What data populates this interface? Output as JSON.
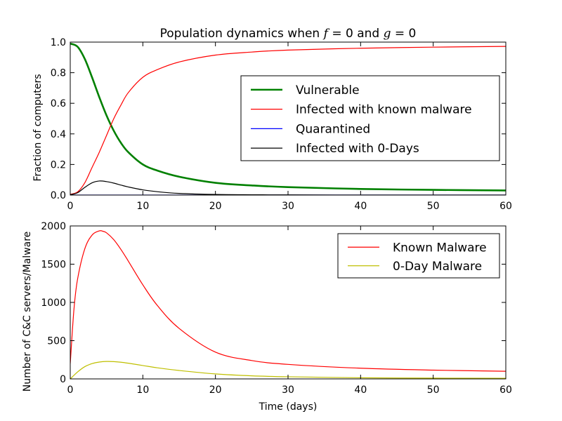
{
  "figure": {
    "title_prefix": "Population dynamics when ",
    "title_f": "f",
    "title_eq1": " = 0",
    "title_and": " and ",
    "title_g": "g",
    "title_eq2": " = 0"
  },
  "chart_data": [
    {
      "type": "line",
      "ylabel": "Fraction of computers",
      "xlim": [
        0,
        60
      ],
      "ylim": [
        0,
        1.0
      ],
      "xticks": [
        0,
        10,
        20,
        30,
        40,
        50,
        60
      ],
      "yticks": [
        0.0,
        0.2,
        0.4,
        0.6,
        0.8,
        1.0
      ],
      "ytick_labels": [
        "0.0",
        "0.2",
        "0.4",
        "0.6",
        "0.8",
        "1.0"
      ],
      "legend_position": "center-right",
      "series": [
        {
          "name": "Vulnerable",
          "color": "#008000",
          "width": 2.6,
          "x": [
            0,
            1,
            2,
            3,
            4,
            5,
            6,
            7,
            8,
            10,
            12,
            15,
            20,
            25,
            30,
            40,
            50,
            60
          ],
          "y": [
            0.99,
            0.97,
            0.89,
            0.77,
            0.64,
            0.52,
            0.42,
            0.34,
            0.28,
            0.2,
            0.16,
            0.12,
            0.08,
            0.063,
            0.052,
            0.04,
            0.034,
            0.03
          ]
        },
        {
          "name": "Infected with known malware",
          "color": "#ff0000",
          "width": 1.2,
          "x": [
            0,
            1,
            2,
            3,
            4,
            5,
            6,
            7,
            8,
            10,
            12,
            15,
            20,
            25,
            30,
            40,
            50,
            60
          ],
          "y": [
            0.005,
            0.02,
            0.08,
            0.18,
            0.28,
            0.39,
            0.5,
            0.59,
            0.67,
            0.77,
            0.82,
            0.87,
            0.915,
            0.935,
            0.948,
            0.96,
            0.967,
            0.972
          ]
        },
        {
          "name": "Quarantined",
          "color": "#0000ff",
          "width": 1.2,
          "x": [
            0,
            60
          ],
          "y": [
            0,
            0
          ]
        },
        {
          "name": "Infected with 0-Days",
          "color": "#000000",
          "width": 1.2,
          "x": [
            0,
            1,
            2,
            3,
            4,
            5,
            6,
            7,
            8,
            10,
            12,
            15,
            20,
            25,
            30,
            40,
            50,
            60
          ],
          "y": [
            0.002,
            0.015,
            0.05,
            0.08,
            0.092,
            0.088,
            0.078,
            0.065,
            0.053,
            0.034,
            0.022,
            0.011,
            0.004,
            0.002,
            0.001,
            0.0,
            0.0,
            0.0
          ]
        }
      ]
    },
    {
      "type": "line",
      "xlabel": "Time (days)",
      "ylabel": "Number of C&C servers/Malware",
      "xlim": [
        0,
        60
      ],
      "ylim": [
        0,
        2000
      ],
      "xticks": [
        0,
        10,
        20,
        30,
        40,
        50,
        60
      ],
      "yticks": [
        0,
        500,
        1000,
        1500,
        2000
      ],
      "ytick_labels": [
        "0",
        "500",
        "1000",
        "1500",
        "2000"
      ],
      "legend_position": "upper-right",
      "series": [
        {
          "name": "Known Malware",
          "color": "#ff0000",
          "width": 1.2,
          "x": [
            0,
            0.5,
            1,
            2,
            3,
            4,
            4.5,
            5,
            6,
            7,
            8,
            10,
            12,
            15,
            20,
            25,
            30,
            40,
            50,
            60
          ],
          "y": [
            200,
            900,
            1300,
            1700,
            1880,
            1935,
            1930,
            1910,
            1820,
            1690,
            1540,
            1230,
            960,
            660,
            350,
            240,
            190,
            140,
            115,
            100
          ]
        },
        {
          "name": "0-Day Malware",
          "color": "#bfbf00",
          "width": 1.2,
          "x": [
            0,
            1,
            2,
            3,
            4,
            5,
            6,
            7,
            8,
            10,
            12,
            15,
            20,
            25,
            30,
            40,
            50,
            60
          ],
          "y": [
            0,
            90,
            160,
            200,
            220,
            228,
            226,
            218,
            205,
            175,
            145,
            110,
            65,
            40,
            28,
            15,
            10,
            8
          ]
        }
      ]
    }
  ]
}
